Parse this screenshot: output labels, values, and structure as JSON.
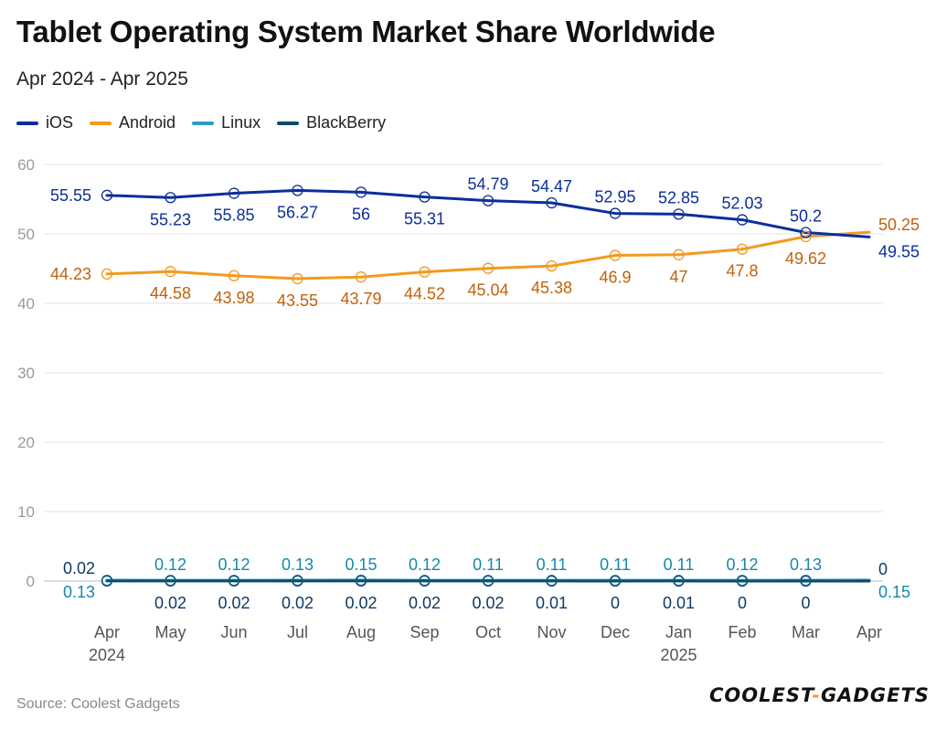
{
  "title": "Tablet Operating System Market Share Worldwide",
  "subtitle": "Apr 2024 - Apr 2025",
  "source": "Source: Coolest Gadgets",
  "logo": {
    "part1": "COOLEST",
    "dash": "-",
    "part2": "GADGETS"
  },
  "chart_data": {
    "type": "line",
    "title": "Tablet Operating System Market Share Worldwide",
    "subtitle": "Apr 2024 - Apr 2025",
    "categories": [
      "Apr",
      "May",
      "Jun",
      "Jul",
      "Aug",
      "Sep",
      "Oct",
      "Nov",
      "Dec",
      "Jan",
      "Feb",
      "Mar",
      "Apr"
    ],
    "category_sublabels": [
      "2024",
      "",
      "",
      "",
      "",
      "",
      "",
      "",
      "",
      "2025",
      "",
      "",
      ""
    ],
    "ylim": [
      0,
      60
    ],
    "yticks": [
      0,
      10,
      20,
      30,
      40,
      50,
      60
    ],
    "grid": true,
    "legend_position": "top-left",
    "series": [
      {
        "name": "iOS",
        "color": "#0b2e9b",
        "label_color": "#0b2e9b",
        "values": [
          55.55,
          55.23,
          55.85,
          56.27,
          56,
          55.31,
          54.79,
          54.47,
          52.95,
          52.85,
          52.03,
          50.2,
          49.55
        ],
        "labels": [
          "55.55",
          "55.23",
          "55.85",
          "56.27",
          "56",
          "55.31",
          "54.79",
          "54.47",
          "52.95",
          "52.85",
          "52.03",
          "50.2",
          "49.55"
        ]
      },
      {
        "name": "Android",
        "color": "#f29a1f",
        "label_color": "#c0620c",
        "values": [
          44.23,
          44.58,
          43.98,
          43.55,
          43.79,
          44.52,
          45.04,
          45.38,
          46.9,
          47,
          47.8,
          49.62,
          50.25
        ],
        "labels": [
          "44.23",
          "44.58",
          "43.98",
          "43.55",
          "43.79",
          "44.52",
          "45.04",
          "45.38",
          "46.9",
          "47",
          "47.8",
          "49.62",
          "50.25"
        ]
      },
      {
        "name": "Linux",
        "color": "#2a9bc8",
        "label_color": "#1787ad",
        "values": [
          0.13,
          0.12,
          0.12,
          0.13,
          0.15,
          0.12,
          0.11,
          0.11,
          0.11,
          0.11,
          0.12,
          0.13,
          0.15
        ],
        "labels": [
          "0.13",
          "0.12",
          "0.12",
          "0.13",
          "0.15",
          "0.12",
          "0.11",
          "0.11",
          "0.11",
          "0.11",
          "0.12",
          "0.13",
          "0.15"
        ]
      },
      {
        "name": "BlackBerry",
        "color": "#0e4a6b",
        "label_color": "#0e3a66",
        "values": [
          0.02,
          0.02,
          0.02,
          0.02,
          0.02,
          0.02,
          0.02,
          0.01,
          0,
          0.01,
          0,
          0,
          0
        ],
        "labels": [
          "0.02",
          "0.02",
          "0.02",
          "0.02",
          "0.02",
          "0.02",
          "0.02",
          "0.01",
          "0",
          "0.01",
          "0",
          "0",
          "0"
        ]
      }
    ]
  }
}
